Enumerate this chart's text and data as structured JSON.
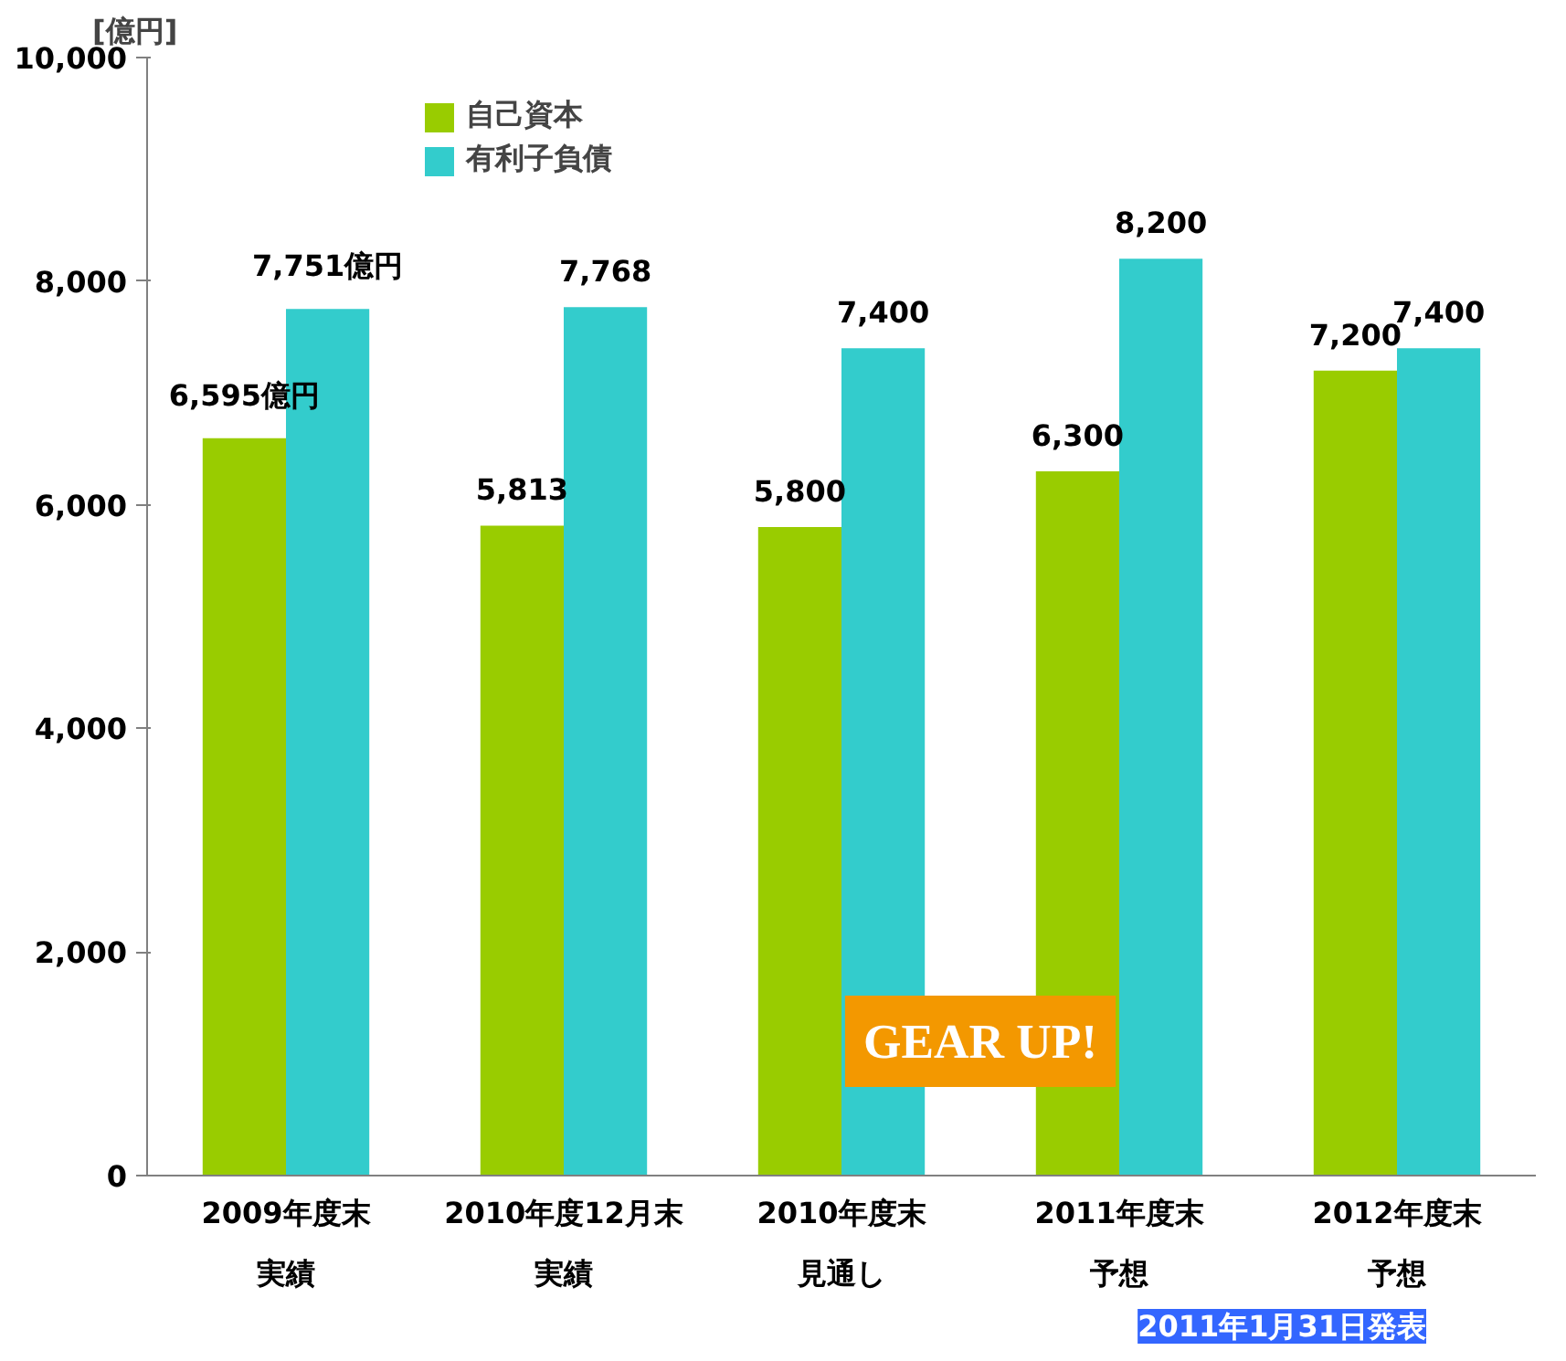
{
  "chart_data": {
    "type": "bar",
    "ylabel": "[億円]",
    "categories": [
      "2009年度末",
      "2010年度12月末",
      "2010年度末",
      "2011年度末",
      "2012年度末"
    ],
    "series": [
      {
        "name": "自己資本",
        "color": "#99cc00",
        "values": [
          6595,
          5813,
          5800,
          6300,
          7200
        ],
        "value_labels": [
          "6,595億円",
          "5,813",
          "5,800",
          "6,300",
          "7,200"
        ]
      },
      {
        "name": "有利子負債",
        "color": "#33cccc",
        "values": [
          7751,
          7768,
          7400,
          8200,
          7400
        ],
        "value_labels": [
          "7,751億円",
          "7,768",
          "7,400",
          "8,200",
          "7,400"
        ]
      }
    ],
    "ylim": [
      0,
      10000
    ],
    "yticks": [
      0,
      {
        "value": 2000,
        "label": "2,000"
      },
      {
        "value": 4000,
        "label": "4,000"
      },
      {
        "value": 6000,
        "label": "6,000"
      },
      {
        "value": 8000,
        "label": "8,000"
      },
      {
        "value": 10000,
        "label": "10,000"
      }
    ],
    "grid": false,
    "legend": "top left",
    "annotations": [
      "GEAR UP!",
      "2011年1月31日発表",
      "実績",
      "実績",
      "見通し",
      "予想",
      "予想"
    ]
  }
}
